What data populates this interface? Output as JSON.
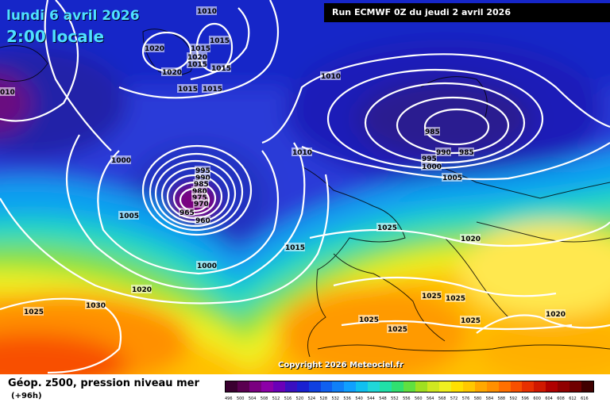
{
  "header": {
    "date_line": "lundi 6 avril 2026",
    "time_line": "2:00 locale",
    "run_line": "Run ECMWF 0Z du jeudi 2 avril 2026"
  },
  "copyright": "Copyright 2026 Meteociel.fr",
  "legend": {
    "title": "Géop. z500, pression niveau mer",
    "subtitle": "(+96h)",
    "ticks": [
      "496",
      "500",
      "504",
      "508",
      "512",
      "516",
      "520",
      "524",
      "528",
      "532",
      "536",
      "540",
      "544",
      "548",
      "552",
      "556",
      "560",
      "564",
      "568",
      "572",
      "576",
      "580",
      "584",
      "588",
      "592",
      "596",
      "600",
      "604",
      "608",
      "612",
      "616"
    ],
    "colors": [
      "#3a0030",
      "#5a0050",
      "#7a0080",
      "#8c00a8",
      "#6a00b8",
      "#3a10c0",
      "#1a20d0",
      "#1040e0",
      "#1060f0",
      "#1080f8",
      "#10a0ff",
      "#10c0f0",
      "#20d8d8",
      "#20e0a8",
      "#30e070",
      "#60e040",
      "#a0e020",
      "#d0e820",
      "#f0f020",
      "#ffe000",
      "#ffc800",
      "#ffa800",
      "#ff9000",
      "#ff7000",
      "#f85000",
      "#e83000",
      "#d01800",
      "#b00000",
      "#900000",
      "#700000",
      "#400000"
    ]
  },
  "pressure_labels": [
    {
      "text": "1010"
    },
    {
      "text": "1015"
    },
    {
      "text": "1020"
    },
    {
      "text": "1015"
    },
    {
      "text": "1020"
    },
    {
      "text": "1015"
    },
    {
      "text": "1015"
    },
    {
      "text": "1020"
    },
    {
      "text": "1015"
    },
    {
      "text": "1015"
    },
    {
      "text": "010"
    },
    {
      "text": "1010"
    },
    {
      "text": "985"
    },
    {
      "text": "985"
    },
    {
      "text": "990"
    },
    {
      "text": "995"
    },
    {
      "text": "1000"
    },
    {
      "text": "1005"
    },
    {
      "text": "1010"
    },
    {
      "text": "1000"
    },
    {
      "text": "995"
    },
    {
      "text": "990"
    },
    {
      "text": "985"
    },
    {
      "text": "980"
    },
    {
      "text": "975"
    },
    {
      "text": "970"
    },
    {
      "text": "965"
    },
    {
      "text": "960"
    },
    {
      "text": "1005"
    },
    {
      "text": "1015"
    },
    {
      "text": "1000"
    },
    {
      "text": "1025"
    },
    {
      "text": "1020"
    },
    {
      "text": "1020"
    },
    {
      "text": "1030"
    },
    {
      "text": "1025"
    },
    {
      "text": "1025"
    },
    {
      "text": "1025"
    },
    {
      "text": "1025"
    },
    {
      "text": "1025"
    },
    {
      "text": "1025"
    },
    {
      "text": "1020"
    }
  ]
}
